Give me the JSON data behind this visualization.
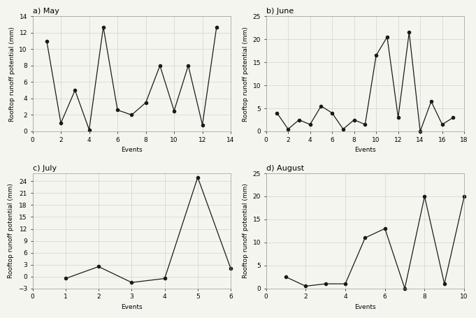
{
  "may": {
    "title": "a) May",
    "x": [
      1,
      2,
      3,
      4,
      5,
      6,
      7,
      8,
      9,
      10,
      11,
      12,
      13
    ],
    "y": [
      11,
      1,
      5,
      0.2,
      12.7,
      2.6,
      2.0,
      3.5,
      8,
      2.5,
      8,
      0.8,
      12.7
    ],
    "xlim": [
      0,
      14
    ],
    "ylim": [
      0,
      14
    ],
    "xticks": [
      0,
      2,
      4,
      6,
      8,
      10,
      12,
      14
    ],
    "yticks": [
      0,
      2,
      4,
      6,
      8,
      10,
      12,
      14
    ],
    "xlabel": "Events",
    "ylabel": "Rooftop runoff potential (mm)"
  },
  "june": {
    "title": "b) June",
    "x": [
      1,
      2,
      3,
      4,
      5,
      6,
      7,
      8,
      9,
      10,
      11,
      12,
      13,
      14,
      15,
      16,
      17
    ],
    "y": [
      4,
      0.5,
      2.5,
      1.5,
      5.5,
      4,
      0.5,
      2.5,
      1.5,
      16.5,
      20.5,
      3,
      21.5,
      0,
      6.5,
      1.5,
      3
    ],
    "xlim": [
      0,
      18
    ],
    "ylim": [
      0,
      25
    ],
    "xticks": [
      0,
      2,
      4,
      6,
      8,
      10,
      12,
      14,
      16,
      18
    ],
    "yticks": [
      0,
      5,
      10,
      15,
      20,
      25
    ],
    "xlabel": "Events",
    "ylabel": "Rooftop runoff potential (mm)"
  },
  "july": {
    "title": "c) July",
    "x": [
      1,
      2,
      3,
      4,
      5,
      6
    ],
    "y": [
      -0.5,
      2.5,
      -1.5,
      -0.5,
      25,
      2
    ],
    "xlim": [
      0,
      6
    ],
    "ylim": [
      -3,
      26
    ],
    "xticks": [
      0,
      1,
      2,
      3,
      4,
      5,
      6
    ],
    "yticks": [
      -3,
      0,
      3,
      6,
      9,
      12,
      15,
      18,
      21,
      24
    ],
    "xlabel": "Events",
    "ylabel": "Rooftop runoff potential (mm)"
  },
  "august": {
    "title": "d) August",
    "x": [
      1,
      2,
      3,
      4,
      5,
      6,
      7,
      8,
      9,
      10
    ],
    "y": [
      2.5,
      0.5,
      1,
      1,
      11,
      13,
      0,
      20,
      1,
      20
    ],
    "xlim": [
      0,
      10
    ],
    "ylim": [
      0,
      25
    ],
    "xticks": [
      0,
      2,
      4,
      6,
      8,
      10
    ],
    "yticks": [
      0,
      5,
      10,
      15,
      20,
      25
    ],
    "xlabel": "Events",
    "ylabel": "Rooftop runoff potential (mm)"
  },
  "line_color": "#1a1a1a",
  "marker": "o",
  "markersize": 3,
  "linewidth": 0.9,
  "grid_color": "#d0d0d0",
  "bg_color": "#f5f5f0",
  "title_fontsize": 8,
  "label_fontsize": 6.5,
  "tick_fontsize": 6.5,
  "spine_color": "#999999"
}
